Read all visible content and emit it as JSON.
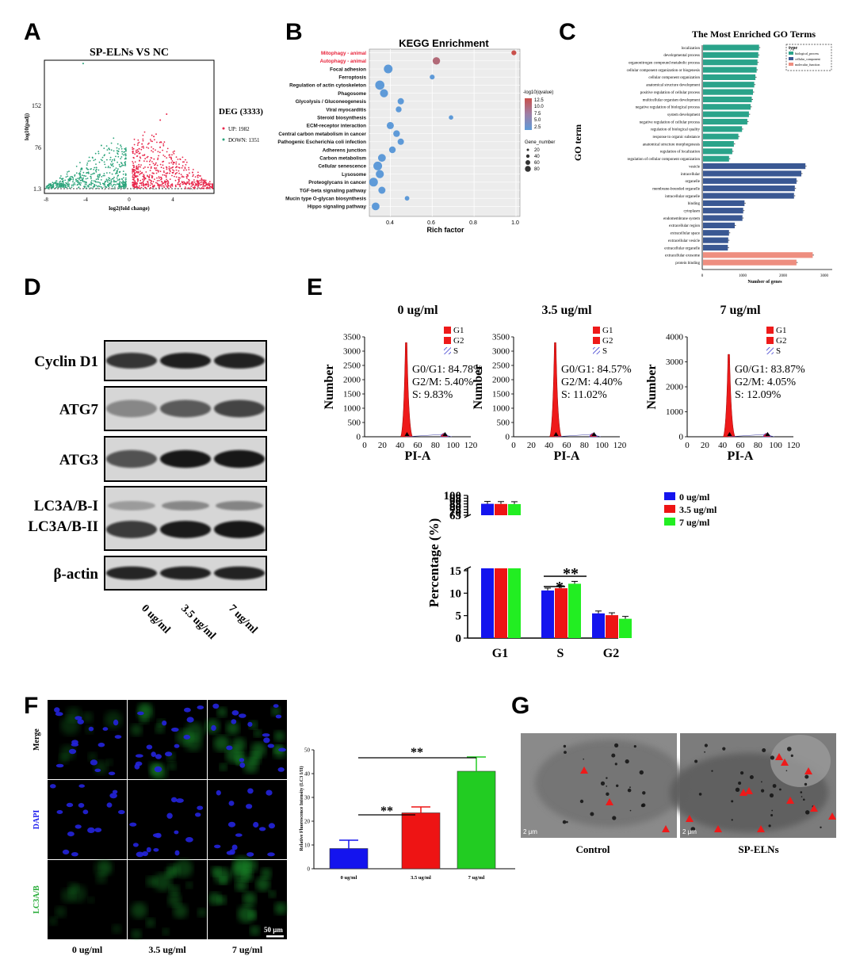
{
  "panels": {
    "A": "A",
    "B": "B",
    "C": "C",
    "D": "D",
    "E": "E",
    "F": "F",
    "G": "G"
  },
  "volcano": {
    "title": "SP-ELNs VS NC",
    "ylabel": "log10(padj)",
    "xlabel": "log2(fold change)",
    "yticks": [
      "152",
      "76",
      "1.3"
    ],
    "xticks": [
      "-8",
      "-4",
      "0",
      "4"
    ],
    "legend_title": "DEG (3333)",
    "up_label": "UP: 1982",
    "down_label": "DOWN: 1351",
    "up_color": "#e8274b",
    "down_color": "#2aa37a"
  },
  "kegg": {
    "title": "KEGG Enrichment",
    "xlabel": "Rich factor",
    "xticks": [
      "0.4",
      "0.6",
      "0.8",
      "1.0"
    ],
    "color_title": "-log10(qvalue)",
    "color_ticks": [
      "12.5",
      "10.0",
      "7.5",
      "5.0",
      "2.5"
    ],
    "size_title": "Gene_number",
    "size_ticks": [
      "20",
      "40",
      "60",
      "80"
    ],
    "terms": [
      {
        "name": "Mitophagy - animal",
        "rf": 0.99,
        "n": 12,
        "q": 13,
        "hl": true
      },
      {
        "name": "Autophagy - animal",
        "rf": 0.62,
        "n": 40,
        "q": 11,
        "hl": true
      },
      {
        "name": "Focal adhesion",
        "rf": 0.39,
        "n": 60,
        "q": 3
      },
      {
        "name": "Ferroptosis",
        "rf": 0.6,
        "n": 12,
        "q": 3
      },
      {
        "name": "Regulation of actin cytoskeleton",
        "rf": 0.35,
        "n": 70,
        "q": 3
      },
      {
        "name": "Phagosome",
        "rf": 0.37,
        "n": 50,
        "q": 3
      },
      {
        "name": "Glycolysis / Gluconeogenesis",
        "rf": 0.45,
        "n": 25,
        "q": 3
      },
      {
        "name": "Viral myocarditis",
        "rf": 0.44,
        "n": 20,
        "q": 3
      },
      {
        "name": "Steroid biosynthesis",
        "rf": 0.69,
        "n": 8,
        "q": 3
      },
      {
        "name": "ECM-receptor interaction",
        "rf": 0.4,
        "n": 35,
        "q": 3
      },
      {
        "name": "Central carbon metabolism in cancer",
        "rf": 0.43,
        "n": 30,
        "q": 3
      },
      {
        "name": "Pathogenic Escherichia coli infection",
        "rf": 0.45,
        "n": 25,
        "q": 3
      },
      {
        "name": "Adherens junction",
        "rf": 0.41,
        "n": 30,
        "q": 3
      },
      {
        "name": "Carbon metabolism",
        "rf": 0.36,
        "n": 45,
        "q": 3
      },
      {
        "name": "Cellular senescence",
        "rf": 0.34,
        "n": 60,
        "q": 3
      },
      {
        "name": "Lysosome",
        "rf": 0.35,
        "n": 50,
        "q": 3
      },
      {
        "name": "Proteoglycans in cancer",
        "rf": 0.32,
        "n": 60,
        "q": 3
      },
      {
        "name": "TGF-beta signaling pathway",
        "rf": 0.36,
        "n": 35,
        "q": 3
      },
      {
        "name": "Mucin type O-glycan biosynthesis",
        "rf": 0.48,
        "n": 10,
        "q": 3
      },
      {
        "name": "Hippo signaling pathway",
        "rf": 0.33,
        "n": 45,
        "q": 3
      }
    ]
  },
  "go": {
    "title": "The Most Enriched GO Terms",
    "ylabel": "GO term",
    "xlabel": "Number of genes",
    "xticks": [
      "0",
      "1000",
      "2000",
      "3000"
    ],
    "legend_title": "type",
    "legend_items": [
      {
        "label": "biological_process",
        "color": "#2aa38a"
      },
      {
        "label": "cellular_component",
        "color": "#3a5893"
      },
      {
        "label": "molecular_function",
        "color": "#ee8e80"
      }
    ],
    "terms": [
      {
        "name": "localization",
        "v": 1380,
        "t": 0
      },
      {
        "name": "developmental process",
        "v": 1360,
        "t": 0
      },
      {
        "name": "organonitrogen compound metabolic process",
        "v": 1340,
        "t": 0
      },
      {
        "name": "cellular component organization or biogenesis",
        "v": 1320,
        "t": 0
      },
      {
        "name": "cellular component organization",
        "v": 1290,
        "t": 0
      },
      {
        "name": "anatomical structure development",
        "v": 1260,
        "t": 0
      },
      {
        "name": "positive regulation of cellular process",
        "v": 1230,
        "t": 0
      },
      {
        "name": "multicellular organism development",
        "v": 1200,
        "t": 0
      },
      {
        "name": "negative regulation of biological process",
        "v": 1170,
        "t": 0
      },
      {
        "name": "system development",
        "v": 1130,
        "t": 0
      },
      {
        "name": "negative regulation of cellular process",
        "v": 1090,
        "t": 0
      },
      {
        "name": "regulation of biological quality",
        "v": 960,
        "t": 0
      },
      {
        "name": "response to organic substance",
        "v": 870,
        "t": 0
      },
      {
        "name": "anatomical structure morphogenesis",
        "v": 760,
        "t": 0
      },
      {
        "name": "regulation of localization",
        "v": 720,
        "t": 0
      },
      {
        "name": "regulation of cellular component organization",
        "v": 640,
        "t": 0
      },
      {
        "name": "vesicle",
        "v": 2520,
        "t": 1
      },
      {
        "name": "intracellular",
        "v": 2420,
        "t": 1
      },
      {
        "name": "organelle",
        "v": 2300,
        "t": 1
      },
      {
        "name": "membrane-bounded organelle",
        "v": 2260,
        "t": 1
      },
      {
        "name": "intracellular organelle",
        "v": 2240,
        "t": 1
      },
      {
        "name": "binding",
        "v": 1020,
        "t": 1
      },
      {
        "name": "cytoplasm",
        "v": 990,
        "t": 1
      },
      {
        "name": "endomembrane system",
        "v": 970,
        "t": 1
      },
      {
        "name": "extracellular region",
        "v": 780,
        "t": 1
      },
      {
        "name": "extracellular space",
        "v": 640,
        "t": 1
      },
      {
        "name": "extracellular vesicle",
        "v": 620,
        "t": 1
      },
      {
        "name": "extracellular organelle",
        "v": 610,
        "t": 1
      },
      {
        "name": "extracellular exosome",
        "v": 2700,
        "t": 2
      },
      {
        "name": "protein binding",
        "v": 2300,
        "t": 2
      }
    ]
  },
  "western": {
    "rows": [
      {
        "label": "Cyclin D1",
        "lines": 1
      },
      {
        "label": "ATG7",
        "lines": 1
      },
      {
        "label": "ATG3",
        "lines": 1
      },
      {
        "label": "LC3A/B-I",
        "label2": "LC3A/B-II",
        "lines": 2
      },
      {
        "label": "β-actin",
        "lines": 1
      }
    ],
    "conditions": [
      "0 ug/ml",
      "3.5 ug/ml",
      "7 ug/ml"
    ]
  },
  "flow": [
    {
      "title": "0 ug/ml",
      "g1": "G0/G1: 84.78%",
      "g2": "G2/M: 5.40%",
      "s": "S: 9.83%",
      "yticks": [
        "3500",
        "3000",
        "2500",
        "2000",
        "1500",
        "1000",
        "500",
        "0"
      ],
      "ymax": 3500
    },
    {
      "title": "3.5 ug/ml",
      "g1": "G0/G1: 84.57%",
      "g2": "G2/M: 4.40%",
      "s": "S: 11.02%",
      "yticks": [
        "3500",
        "3000",
        "2500",
        "2000",
        "1500",
        "1000",
        "500",
        "0"
      ],
      "ymax": 3500
    },
    {
      "title": "7 ug/ml",
      "g1": "G0/G1: 83.87%",
      "g2": "G2/M: 4.05%",
      "s": "S: 12.09%",
      "yticks": [
        "4000",
        "3000",
        "2000",
        "1000",
        "0"
      ],
      "ymax": 4000
    }
  ],
  "flow_common": {
    "ylabel": "Number",
    "xlabel": "PI-A",
    "xticks": [
      "0",
      "20",
      "40",
      "60",
      "80",
      "100",
      "120"
    ],
    "leg_g1": "G1",
    "leg_g2": "G2",
    "leg_s": "S"
  },
  "chart_data": [
    {
      "type": "bar",
      "categories": [
        "G1",
        "S",
        "G2"
      ],
      "series": [
        {
          "name": "0 ug/ml",
          "values": [
            85.2,
            10.6,
            5.5
          ],
          "color": "#1414ee"
        },
        {
          "name": "3.5 ug/ml",
          "values": [
            84.9,
            11.1,
            5.1
          ],
          "color": "#ee1414"
        },
        {
          "name": "7 ug/ml",
          "values": [
            84.7,
            12.1,
            4.3
          ],
          "color": "#22ee22"
        }
      ],
      "ylabel": "Percentage (%)",
      "yticks": [
        "100",
        "95",
        "90",
        "85",
        "80",
        "75",
        "70",
        "65",
        "15",
        "10",
        "5",
        "0"
      ],
      "sig_single": "*",
      "sig_double": "**"
    },
    {
      "type": "bar",
      "categories": [
        "0 ug/ml",
        "3.5 ug/ml",
        "7 ug/ml"
      ],
      "values": [
        8.5,
        23.5,
        41
      ],
      "errors": [
        3.5,
        2.5,
        6
      ],
      "colors": [
        "#1414ee",
        "#ee1414",
        "#22cc22"
      ],
      "ylabel": "Relative Fluorescence Intensity (LC3 I/II)",
      "ylim": [
        0,
        50
      ],
      "yticks": [
        "0",
        "10",
        "20",
        "30",
        "40",
        "50"
      ],
      "sig": "**"
    }
  ],
  "micro": {
    "rows": [
      "Merge",
      "DAPI",
      "LC3A/B"
    ],
    "row_colors": [
      "#000000",
      "#1a1aee",
      "#22aa33"
    ],
    "cols": [
      "0 ug/ml",
      "3.5 ug/ml",
      "7 ug/ml"
    ],
    "scale": "50 μm"
  },
  "tem": {
    "labels": [
      "Control",
      "SP-ELNs"
    ],
    "scale": "2 μm"
  }
}
